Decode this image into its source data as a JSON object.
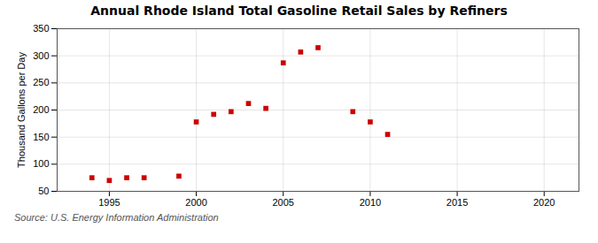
{
  "chart_data": {
    "type": "scatter",
    "title": "Annual Rhode Island Total Gasoline Retail Sales by Refiners",
    "ylabel": "Thousand Gallons per Day",
    "annotations": [
      "Source: U.S. Energy Information Administration"
    ],
    "x": [
      1994,
      1995,
      1996,
      1997,
      1999,
      2000,
      2001,
      2002,
      2003,
      2004,
      2005,
      2006,
      2007,
      2009,
      2010,
      2011
    ],
    "values": [
      75,
      70,
      75,
      75,
      78,
      178,
      192,
      197,
      212,
      203,
      287,
      307,
      315,
      197,
      178,
      155
    ],
    "color": "#cc0000",
    "marker": "square",
    "xlim": [
      1992,
      2022
    ],
    "ylim": [
      50,
      350
    ],
    "xticks": [
      1995,
      2000,
      2005,
      2010,
      2015,
      2020
    ],
    "yticks": [
      50,
      100,
      150,
      200,
      250,
      300,
      350
    ],
    "grid": true
  }
}
